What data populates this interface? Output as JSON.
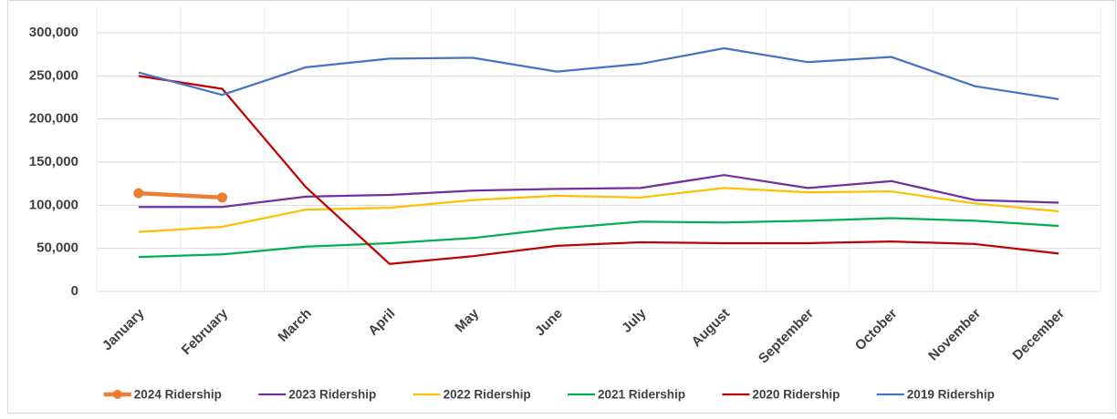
{
  "chart_data": {
    "type": "line",
    "categories": [
      "January",
      "February",
      "March",
      "April",
      "May",
      "June",
      "July",
      "August",
      "September",
      "October",
      "November",
      "December"
    ],
    "series": [
      {
        "name": "2024 Ridership",
        "color": "#ed7d31",
        "markers": true,
        "values": [
          114000,
          109000,
          null,
          null,
          null,
          null,
          null,
          null,
          null,
          null,
          null,
          null
        ]
      },
      {
        "name": "2023 Ridership",
        "color": "#7030a0",
        "values": [
          98000,
          98000,
          110000,
          112000,
          117000,
          119000,
          120000,
          135000,
          120000,
          128000,
          106000,
          103000
        ]
      },
      {
        "name": "2022 Ridership",
        "color": "#ffc000",
        "values": [
          69000,
          75000,
          95000,
          97000,
          106000,
          111000,
          109000,
          120000,
          115000,
          116000,
          102000,
          93000
        ]
      },
      {
        "name": "2021 Ridership",
        "color": "#00b050",
        "values": [
          40000,
          43000,
          52000,
          56000,
          62000,
          73000,
          81000,
          80000,
          82000,
          85000,
          82000,
          76000
        ]
      },
      {
        "name": "2020 Ridership",
        "color": "#c00000",
        "values": [
          250000,
          235000,
          121000,
          32000,
          41000,
          53000,
          57000,
          56000,
          56000,
          58000,
          55000,
          44000
        ]
      },
      {
        "name": "2019 Ridership",
        "color": "#4472c4",
        "values": [
          254000,
          228000,
          260000,
          270000,
          271000,
          255000,
          264000,
          282000,
          266000,
          272000,
          238000,
          223000
        ]
      }
    ],
    "ylim": [
      0,
      300000
    ],
    "yticks": [
      0,
      {
        "value": 50000,
        "label": "50,000"
      },
      {
        "value": 100000,
        "label": "100,000"
      },
      {
        "value": 150000,
        "label": "150,000"
      },
      {
        "value": 200000,
        "label": "200,000"
      },
      {
        "value": 250000,
        "label": "250,000"
      },
      {
        "value": 300000,
        "label": "300,000"
      }
    ],
    "grid": true,
    "legend": "bottom"
  }
}
